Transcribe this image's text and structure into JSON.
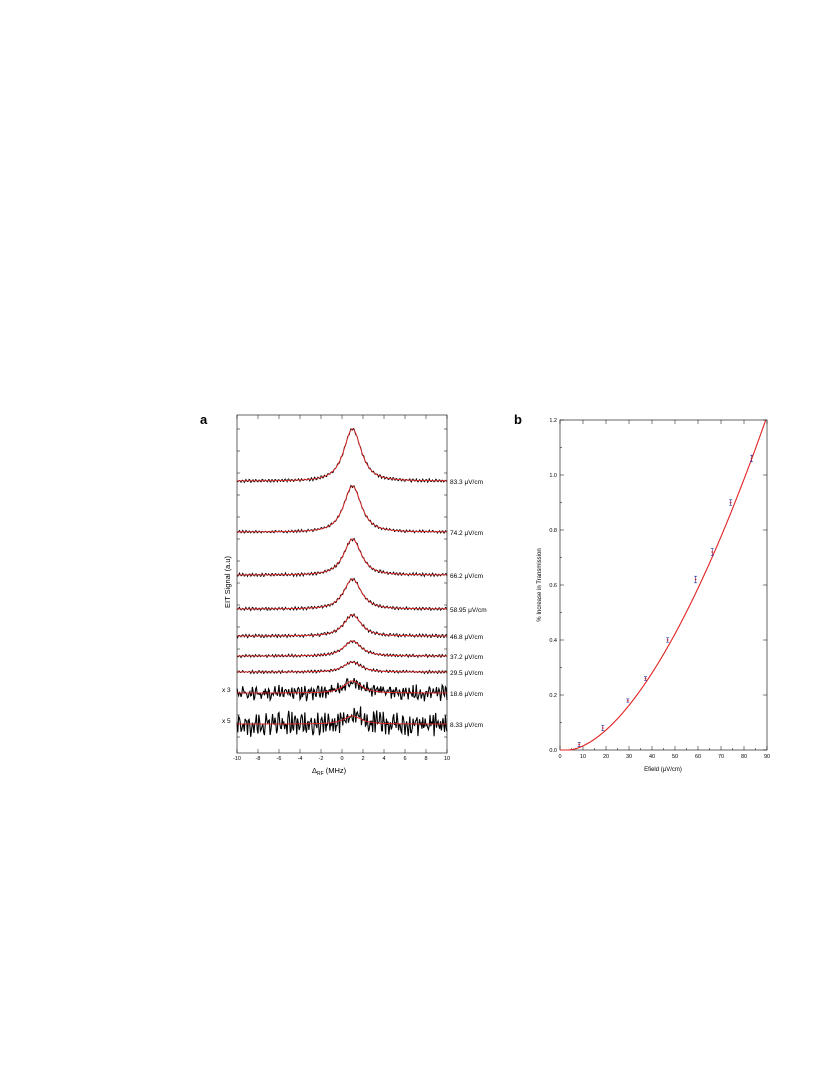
{
  "panel_a": {
    "letter": "a",
    "xlabel_main": "Δ",
    "xlabel_sub": "RF",
    "xlabel_unit": " (MHz)",
    "ylabel": "EIT Signal (a.u)"
  },
  "panel_b": {
    "letter": "b",
    "xlabel": "Efield (μV/cm)",
    "ylabel": "% Increase in Transmission"
  },
  "colors": {
    "data": "#000000",
    "fit": "#e32222",
    "errorbar": "#1a2a9a"
  },
  "chart_data": [
    {
      "type": "line",
      "panel": "a",
      "xlabel": "ΔRF (MHz)",
      "ylabel": "EIT Signal (a.u)",
      "xlim": [
        -10,
        10
      ],
      "x_ticks": [
        -10,
        -8,
        -6,
        -4,
        -2,
        0,
        2,
        4,
        6,
        8,
        10
      ],
      "series": [
        {
          "name": "83.3 μV/cm",
          "center": 1.0,
          "fwhm": 2.4,
          "peak": 1.0,
          "multiplier": ""
        },
        {
          "name": "74.2 μV/cm",
          "center": 1.0,
          "fwhm": 2.4,
          "peak": 0.87,
          "multiplier": ""
        },
        {
          "name": "66.2 μV/cm",
          "center": 1.0,
          "fwhm": 2.4,
          "peak": 0.66,
          "multiplier": ""
        },
        {
          "name": "58.95 μV/cm",
          "center": 1.0,
          "fwhm": 2.4,
          "peak": 0.56,
          "multiplier": ""
        },
        {
          "name": "46.8 μV/cm",
          "center": 1.0,
          "fwhm": 2.4,
          "peak": 0.38,
          "multiplier": ""
        },
        {
          "name": "37.2 μV/cm",
          "center": 1.0,
          "fwhm": 2.4,
          "peak": 0.28,
          "multiplier": ""
        },
        {
          "name": "29.5 μV/cm",
          "center": 1.0,
          "fwhm": 2.4,
          "peak": 0.18,
          "multiplier": ""
        },
        {
          "name": "18.6 μV/cm",
          "center": 1.0,
          "fwhm": 2.4,
          "peak": 0.22,
          "multiplier": "x 3"
        },
        {
          "name": "8.33 μV/cm",
          "center": 1.0,
          "fwhm": 2.4,
          "peak": 0.12,
          "multiplier": "x 5"
        }
      ]
    },
    {
      "type": "scatter",
      "panel": "b",
      "xlabel": "Efield (μV/cm)",
      "ylabel": "% Increase in Transmission",
      "xlim": [
        0,
        90
      ],
      "ylim": [
        0,
        1.2
      ],
      "x_ticks": [
        0,
        10,
        20,
        30,
        40,
        50,
        60,
        70,
        80,
        90
      ],
      "y_ticks": [
        0.0,
        0.2,
        0.4,
        0.6,
        0.8,
        1.0,
        1.2
      ],
      "points": [
        {
          "x": 8.33,
          "y": 0.02,
          "err": 0.008
        },
        {
          "x": 18.6,
          "y": 0.08,
          "err": 0.01
        },
        {
          "x": 29.5,
          "y": 0.18,
          "err": 0.006
        },
        {
          "x": 37.2,
          "y": 0.26,
          "err": 0.007
        },
        {
          "x": 46.8,
          "y": 0.4,
          "err": 0.008
        },
        {
          "x": 58.95,
          "y": 0.62,
          "err": 0.012
        },
        {
          "x": 66.2,
          "y": 0.72,
          "err": 0.012
        },
        {
          "x": 74.2,
          "y": 0.9,
          "err": 0.01
        },
        {
          "x": 83.3,
          "y": 1.06,
          "err": 0.012
        }
      ],
      "fit": {
        "form": "a*(x-x0)^p",
        "a": 0.000618,
        "x0": 3.5,
        "p": 1.7
      }
    }
  ]
}
